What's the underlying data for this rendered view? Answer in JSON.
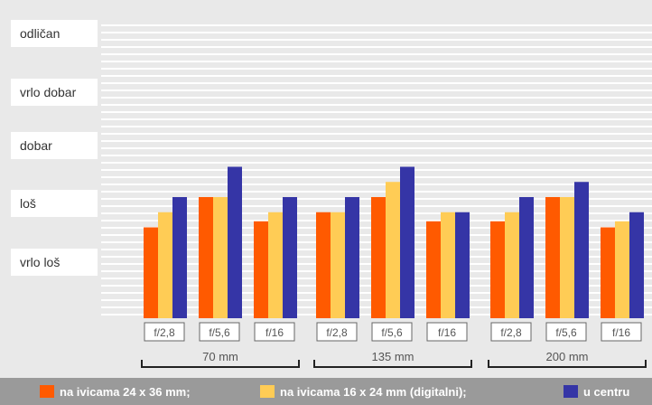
{
  "chart_data": {
    "type": "bar",
    "rating_levels": [
      "odličan",
      "vrlo dobar",
      "dobar",
      "loš",
      "vrlo loš"
    ],
    "focal_groups": [
      {
        "label": "70 mm",
        "apertures": [
          "f/2,8",
          "f/5,6",
          "f/16"
        ]
      },
      {
        "label": "135 mm",
        "apertures": [
          "f/2,8",
          "f/5,6",
          "f/16"
        ]
      },
      {
        "label": "200 mm",
        "apertures": [
          "f/2,8",
          "f/5,6",
          "f/16"
        ]
      }
    ],
    "categories": [
      "70 mm f/2,8",
      "70 mm f/5,6",
      "70 mm f/16",
      "135 mm f/2,8",
      "135 mm f/5,6",
      "135 mm f/16",
      "200 mm f/2,8",
      "200 mm f/5,6",
      "200 mm f/16"
    ],
    "ylim": [
      0,
      6
    ],
    "series": [
      {
        "name": "na ivicama 24 x 36 mm;",
        "color": "#ff5a00",
        "values": [
          3.0,
          4.0,
          3.2,
          3.5,
          4.0,
          3.2,
          3.2,
          4.0,
          3.0
        ]
      },
      {
        "name": "na ivicama 16 x 24 mm (digitalni);",
        "color": "#ffcc55",
        "values": [
          3.5,
          4.0,
          3.5,
          3.5,
          4.5,
          3.5,
          3.5,
          4.0,
          3.2
        ]
      },
      {
        "name": "u centru",
        "color": "#3535a6",
        "values": [
          4.0,
          5.0,
          4.0,
          4.0,
          5.0,
          3.5,
          4.0,
          4.5,
          3.5
        ]
      }
    ]
  }
}
